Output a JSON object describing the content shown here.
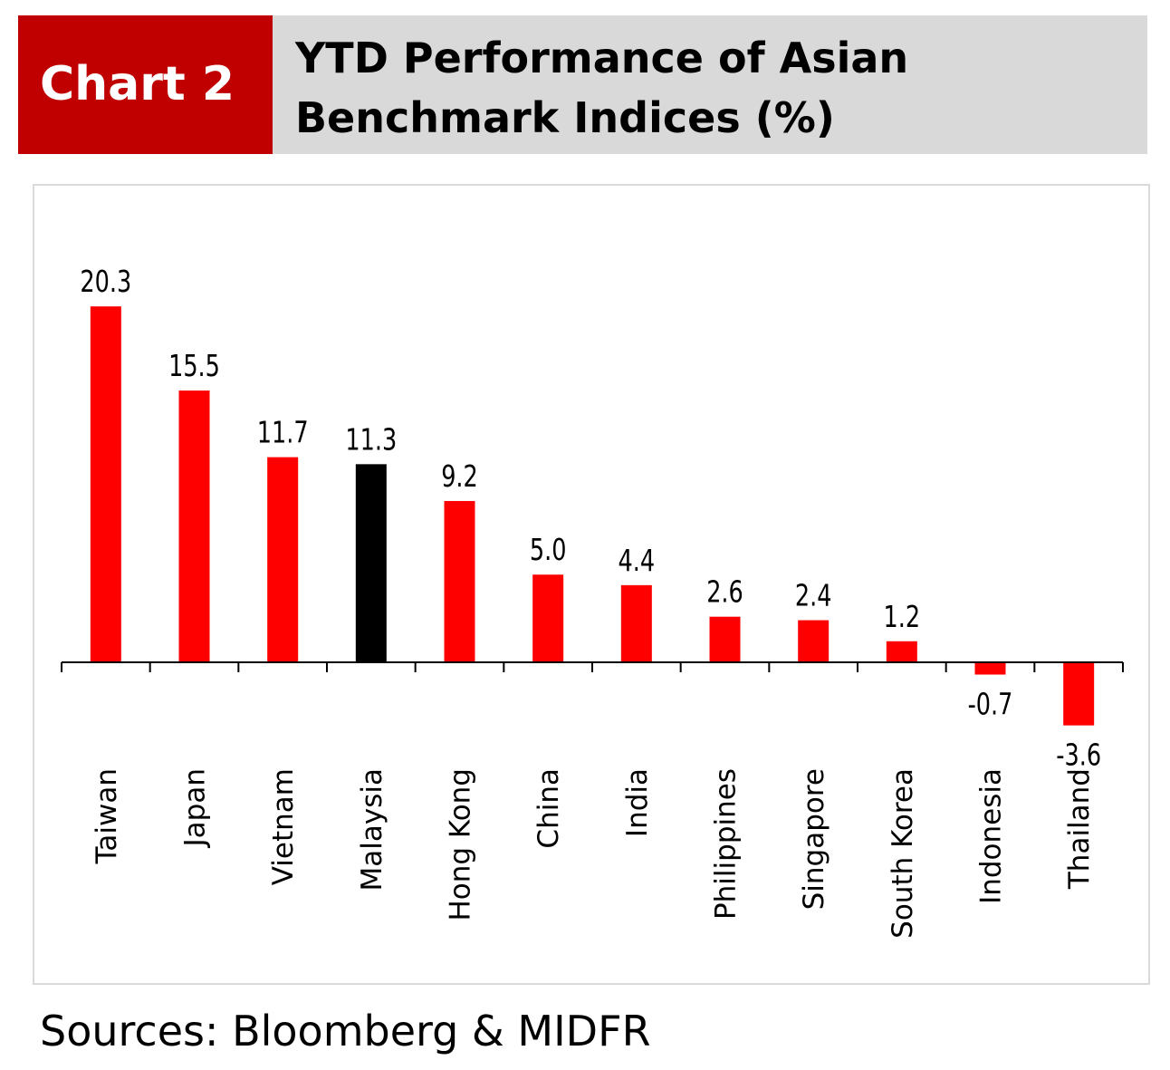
{
  "header": {
    "tag": "Chart 2",
    "title": "YTD Performance of Asian Benchmark Indices (%)",
    "tag_color": "#c00000",
    "band_color": "#d9d9d9"
  },
  "chart_data": {
    "type": "bar",
    "title": "YTD Performance of Asian Benchmark Indices (%)",
    "categories": [
      "Taiwan",
      "Japan",
      "Vietnam",
      "Malaysia",
      "Hong Kong",
      "China",
      "India",
      "Philippines",
      "Singapore",
      "South Korea",
      "Indonesia",
      "Thailand"
    ],
    "values": [
      20.3,
      15.5,
      11.7,
      11.3,
      9.2,
      5.0,
      4.4,
      2.6,
      2.4,
      1.2,
      -0.7,
      -3.6
    ],
    "value_labels": [
      "20.3",
      "15.5",
      "11.7",
      "11.3",
      "9.2",
      "5.0",
      "4.4",
      "2.6",
      "2.4",
      "1.2",
      "-0.7",
      "-3.6"
    ],
    "bar_color": "#ff0000",
    "highlight_category": "Malaysia",
    "highlight_color": "#000000",
    "xlabel": "",
    "ylabel": "",
    "grid": false,
    "legend": "none"
  },
  "footer": {
    "source": "Sources: Bloomberg & MIDFR"
  }
}
